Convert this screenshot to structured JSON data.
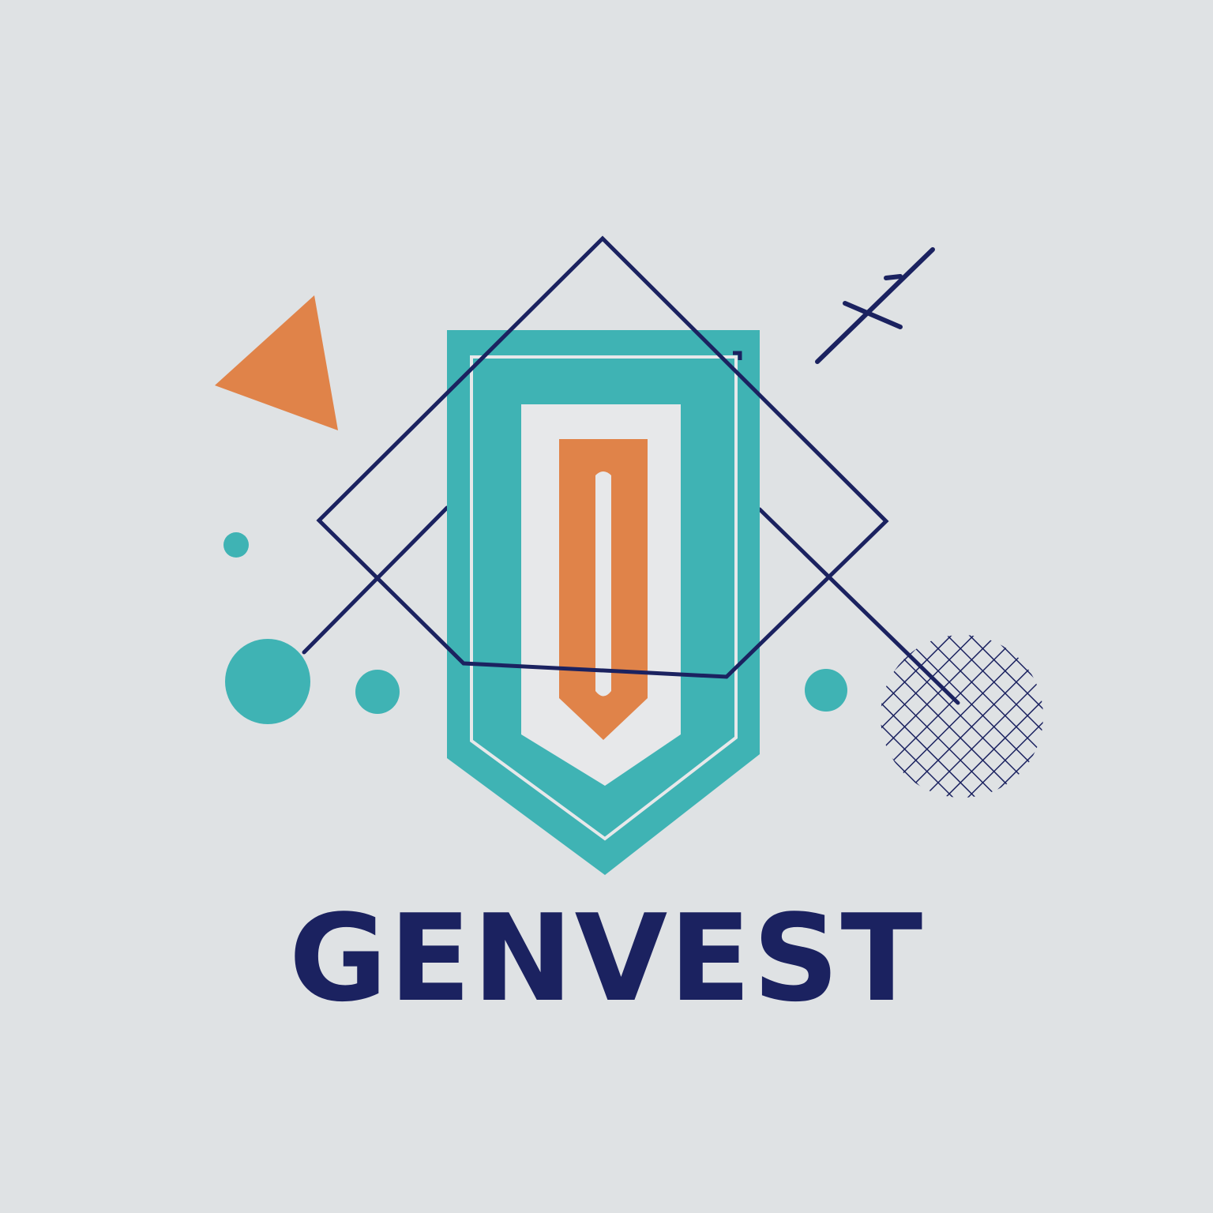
{
  "brand": {
    "name": "GENVEST"
  },
  "colors": {
    "background": "#dfe2e4",
    "teal": "#3fb3b4",
    "orange": "#e08349",
    "navy": "#1b2260",
    "panel": "#e7e8ea"
  },
  "icons": [
    "shield-emblem-icon",
    "orange-triangle-icon",
    "crosshatch-circle-icon",
    "teal-dot-icon",
    "plus-sign-icon"
  ]
}
